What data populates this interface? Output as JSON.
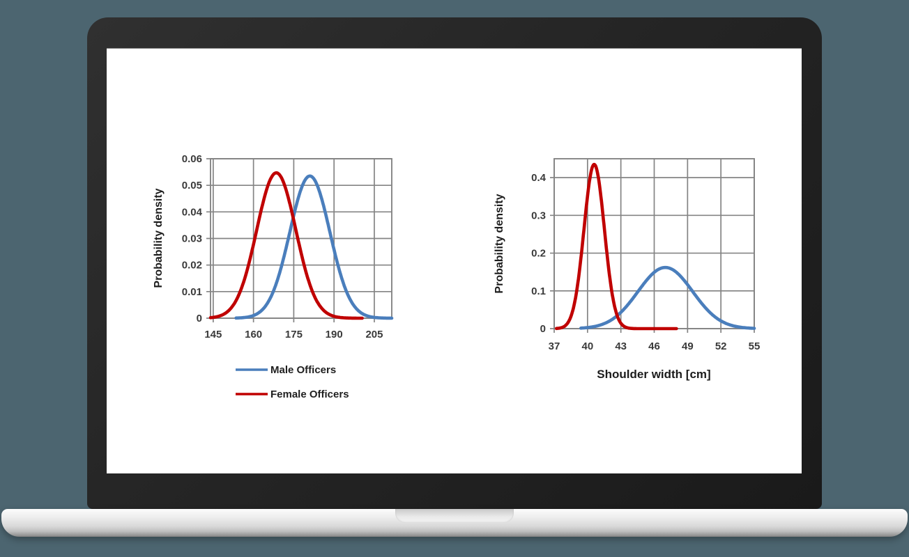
{
  "scene": {
    "background_color": "#4c6570",
    "device": "laptop-mockup",
    "bezel_color": "#262626",
    "screen_color": "#ffffff",
    "base_color": "#d9d9d9"
  },
  "chart_data": [
    {
      "id": "height-density-chart",
      "type": "line",
      "title": "",
      "xlabel": "",
      "ylabel": "Probability density",
      "xlim": [
        144,
        211.5
      ],
      "ylim": [
        0,
        0.06
      ],
      "x_ticks": [
        145,
        160,
        175,
        190,
        205
      ],
      "y_ticks": [
        0,
        0.01,
        0.02,
        0.03,
        0.04,
        0.05,
        0.06
      ],
      "y_tick_labels": [
        "0",
        "0.01",
        "0.02",
        "0.03",
        "0.04",
        "0.05",
        "0.06"
      ],
      "grid": true,
      "show_legend": true,
      "legend_position": "bottom-left",
      "grid_color": "#848484",
      "series": [
        {
          "name": "Male Officers",
          "color": "#4a7ebc",
          "distribution": "normal",
          "mean": 181,
          "sd": 7.45,
          "peak_density": 0.0535,
          "x_start": 153.5,
          "x_end": 211.5
        },
        {
          "name": "Female Officers",
          "color": "#c00000",
          "distribution": "normal",
          "mean": 168.5,
          "sd": 7.3,
          "peak_density": 0.0547,
          "x_start": 144,
          "x_end": 200.5
        }
      ]
    },
    {
      "id": "shoulder-width-density-chart",
      "type": "line",
      "title": "",
      "xlabel": "Shoulder width [cm]",
      "ylabel": "Probability density",
      "xlim": [
        37,
        55
      ],
      "ylim": [
        0,
        0.45
      ],
      "x_ticks": [
        37,
        40,
        43,
        46,
        49,
        52,
        55
      ],
      "y_ticks": [
        0,
        0.1,
        0.2,
        0.3,
        0.4
      ],
      "y_tick_labels": [
        "0",
        "0.1",
        "0.2",
        "0.3",
        "0.4"
      ],
      "grid": true,
      "show_legend": false,
      "grid_color": "#848484",
      "series": [
        {
          "name": "Male Officers",
          "color": "#4a7ebc",
          "distribution": "normal",
          "mean": 47,
          "sd": 2.46,
          "peak_density": 0.162,
          "x_start": 39.4,
          "x_end": 55
        },
        {
          "name": "Female Officers",
          "color": "#c00000",
          "distribution": "normal",
          "mean": 40.6,
          "sd": 0.918,
          "peak_density": 0.435,
          "x_start": 37.2,
          "x_end": 48
        }
      ]
    }
  ]
}
